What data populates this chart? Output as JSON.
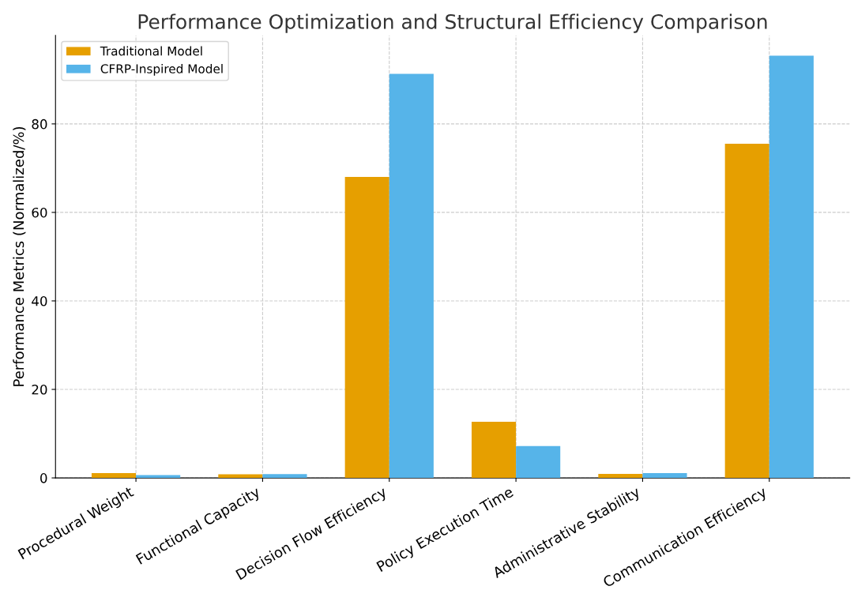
{
  "chart_data": {
    "type": "bar",
    "title": "Performance Optimization and Structural Efficiency Comparison",
    "ylabel": "Performance Metrics (Normalized/%)",
    "categories": [
      "Procedural Weight",
      "Functional Capacity",
      "Decision Flow Efficiency",
      "Policy Execution Time",
      "Administrative Stability",
      "Communication Efficiency"
    ],
    "series": [
      {
        "name": "Traditional Model",
        "color": "#e69f00",
        "values": [
          1.1,
          0.8,
          68.0,
          12.7,
          0.9,
          75.5
        ]
      },
      {
        "name": "CFRP-Inspired Model",
        "color": "#56b4e9",
        "values": [
          0.65,
          0.85,
          91.3,
          7.2,
          1.1,
          95.4
        ]
      }
    ],
    "ylim": [
      0,
      100
    ],
    "yticks": [
      0,
      20,
      40,
      60,
      80
    ],
    "grid": true,
    "legend": "top left"
  }
}
